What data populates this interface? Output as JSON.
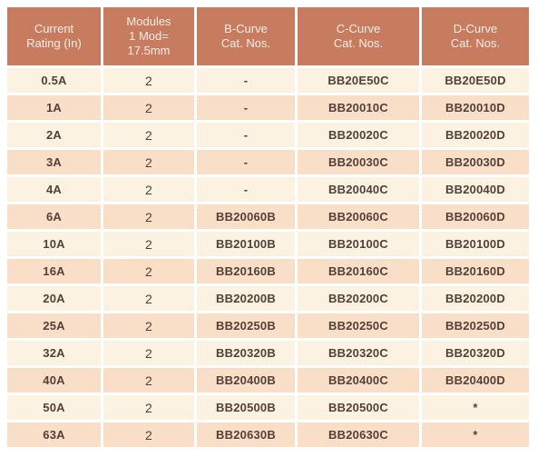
{
  "colors": {
    "header_bg": "#c87c5f",
    "header_fg": "#f9ede6",
    "row_light": "#fbf2e2",
    "row_dark": "#f9dfc8",
    "body_fg": "#554038",
    "page_bg": "#ffffff"
  },
  "table": {
    "columns": [
      "Current\nRating (In)",
      "Modules\n1 Mod=\n17.5mm",
      "B-Curve\nCat. Nos.",
      "C-Curve\nCat. Nos.",
      "D-Curve\nCat. Nos."
    ],
    "column_keys": [
      "current-rating",
      "modules",
      "b-curve",
      "c-curve",
      "d-curve"
    ],
    "rows": [
      [
        "0.5A",
        "2",
        "-",
        "BB20E50C",
        "BB20E50D"
      ],
      [
        "1A",
        "2",
        "-",
        "BB20010C",
        "BB20010D"
      ],
      [
        "2A",
        "2",
        "-",
        "BB20020C",
        "BB20020D"
      ],
      [
        "3A",
        "2",
        "-",
        "BB20030C",
        "BB20030D"
      ],
      [
        "4A",
        "2",
        "-",
        "BB20040C",
        "BB20040D"
      ],
      [
        "6A",
        "2",
        "BB20060B",
        "BB20060C",
        "BB20060D"
      ],
      [
        "10A",
        "2",
        "BB20100B",
        "BB20100C",
        "BB20100D"
      ],
      [
        "16A",
        "2",
        "BB20160B",
        "BB20160C",
        "BB20160D"
      ],
      [
        "20A",
        "2",
        "BB20200B",
        "BB20200C",
        "BB20200D"
      ],
      [
        "25A",
        "2",
        "BB20250B",
        "BB20250C",
        "BB20250D"
      ],
      [
        "32A",
        "2",
        "BB20320B",
        "BB20320C",
        "BB20320D"
      ],
      [
        "40A",
        "2",
        "BB20400B",
        "BB20400C",
        "BB20400D"
      ],
      [
        "50A",
        "2",
        "BB20500B",
        "BB20500C",
        "*"
      ],
      [
        "63A",
        "2",
        "BB20630B",
        "BB20630C",
        "*"
      ]
    ]
  }
}
